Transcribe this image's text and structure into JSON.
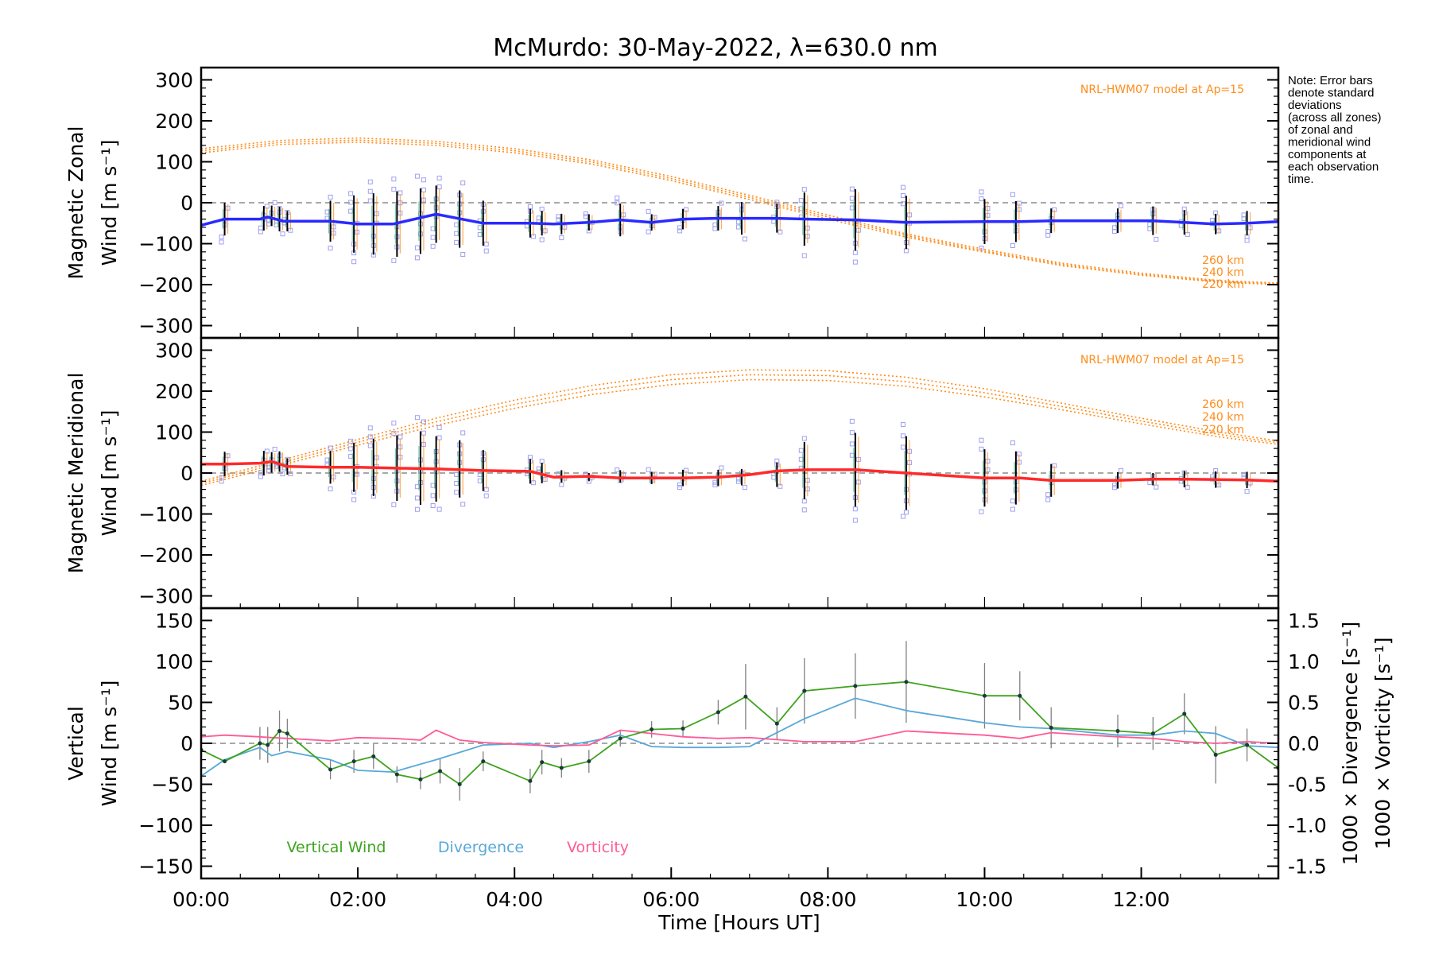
{
  "title": "McMurdo: 30-May-2022, λ=630.0 nm",
  "note_lines": [
    "Note: Error bars",
    "denote standard",
    "deviations",
    "(across all zones)",
    "of zonal and",
    "meridional wind",
    "components at",
    "each observation",
    "time."
  ],
  "colors": {
    "zonal": "#2a2aff",
    "meridional": "#ff2a2a",
    "vertical": "#3fa31f",
    "divergence": "#59a8d8",
    "vorticity": "#ff5a96",
    "model": "#ff8c1a",
    "scatter": "#a0a0f0",
    "zero": "#8c8c8c"
  },
  "chart_data": [
    {
      "type": "line",
      "panel": "zonal",
      "ylabel_line1": "Magnetic Zonal",
      "ylabel_line2": "Wind [m s⁻¹]",
      "ylim": [
        -330,
        330
      ],
      "yticks": [
        300,
        200,
        100,
        0,
        -100,
        -200,
        -300
      ],
      "xlim": [
        0,
        13.75
      ],
      "model_label": "NRL-HWM07 model at Ap=15",
      "model_heights": [
        "260 km",
        "240 km",
        "220 km"
      ],
      "series": [
        {
          "name": "Zonal wind",
          "x": [
            0,
            0.3,
            0.75,
            0.85,
            0.95,
            1.05,
            1.65,
            2.0,
            2.45,
            3.0,
            3.6,
            4.2,
            4.5,
            4.95,
            5.35,
            5.75,
            6.15,
            6.6,
            7.0,
            7.35,
            7.75,
            8.35,
            9.0,
            10.0,
            10.45,
            10.85,
            11.7,
            12.15,
            12.55,
            12.95,
            13.35,
            13.75
          ],
          "y": [
            -55,
            -40,
            -40,
            -35,
            -40,
            -45,
            -45,
            -52,
            -52,
            -28,
            -50,
            -50,
            -52,
            -48,
            -42,
            -48,
            -40,
            -38,
            -38,
            -38,
            -40,
            -42,
            -48,
            -46,
            -46,
            -44,
            -44,
            -44,
            -48,
            -52,
            -50,
            -46
          ]
        },
        {
          "name": "HWM 260 km",
          "x": [
            0,
            1,
            2,
            3,
            4,
            5,
            6,
            7,
            8,
            9,
            10,
            11,
            12,
            13,
            13.75
          ],
          "y": [
            132,
            152,
            158,
            150,
            132,
            104,
            64,
            18,
            -30,
            -76,
            -114,
            -148,
            -172,
            -190,
            -196
          ]
        },
        {
          "name": "HWM 240 km",
          "x": [
            0,
            1,
            2,
            3,
            4,
            5,
            6,
            7,
            8,
            9,
            10,
            11,
            12,
            13,
            13.75
          ],
          "y": [
            127,
            147,
            153,
            145,
            127,
            99,
            59,
            13,
            -35,
            -80,
            -118,
            -151,
            -175,
            -192,
            -198
          ]
        },
        {
          "name": "HWM 220 km",
          "x": [
            0,
            1,
            2,
            3,
            4,
            5,
            6,
            7,
            8,
            9,
            10,
            11,
            12,
            13,
            13.75
          ],
          "y": [
            122,
            142,
            148,
            140,
            122,
            94,
            54,
            8,
            -40,
            -84,
            -121,
            -154,
            -177,
            -194,
            -200
          ]
        }
      ],
      "error_bars": {
        "x": [
          0.3,
          0.8,
          0.9,
          1.0,
          1.1,
          1.65,
          1.95,
          2.2,
          2.5,
          2.8,
          3.0,
          3.3,
          3.6,
          4.2,
          4.35,
          4.6,
          4.95,
          5.35,
          5.75,
          6.15,
          6.6,
          6.9,
          7.35,
          7.7,
          8.35,
          9.0,
          10.0,
          10.4,
          10.85,
          11.7,
          12.15,
          12.55,
          12.95,
          13.35
        ],
        "y": [
          -40,
          -38,
          -32,
          -40,
          -45,
          -45,
          -52,
          -52,
          -52,
          -45,
          -28,
          -40,
          -50,
          -50,
          -50,
          -52,
          -48,
          -42,
          -48,
          -40,
          -38,
          -38,
          -38,
          -40,
          -42,
          -48,
          -46,
          -46,
          -44,
          -44,
          -44,
          -48,
          -52,
          -50
        ],
        "err": [
          40,
          30,
          25,
          30,
          25,
          50,
          70,
          75,
          80,
          80,
          70,
          70,
          55,
          35,
          30,
          25,
          20,
          40,
          20,
          25,
          30,
          40,
          35,
          65,
          75,
          65,
          55,
          50,
          30,
          30,
          35,
          30,
          25,
          30
        ]
      }
    },
    {
      "type": "line",
      "panel": "meridional",
      "ylabel_line1": "Magnetic Meridional",
      "ylabel_line2": "Wind [m s⁻¹]",
      "ylim": [
        -330,
        330
      ],
      "yticks": [
        300,
        200,
        100,
        0,
        -100,
        -200,
        -300
      ],
      "xlim": [
        0,
        13.75
      ],
      "model_label": "NRL-HWM07 model at Ap=15",
      "model_heights": [
        "260 km",
        "240 km",
        "220 km"
      ],
      "series": [
        {
          "name": "Meridional wind",
          "x": [
            0,
            0.3,
            0.75,
            0.9,
            1.1,
            1.65,
            2.0,
            2.45,
            3.0,
            3.6,
            4.2,
            4.5,
            4.95,
            5.35,
            5.75,
            6.15,
            6.6,
            7.0,
            7.35,
            7.75,
            8.35,
            9.0,
            10.0,
            10.45,
            10.85,
            11.7,
            12.15,
            12.55,
            12.95,
            13.35,
            13.75
          ],
          "y": [
            22,
            22,
            24,
            28,
            16,
            14,
            14,
            12,
            10,
            6,
            4,
            -10,
            -8,
            -12,
            -12,
            -12,
            -10,
            -4,
            5,
            8,
            8,
            0,
            -12,
            -12,
            -18,
            -18,
            -15,
            -15,
            -16,
            -17,
            -20
          ]
        },
        {
          "name": "HWM 260 km",
          "x": [
            0,
            1,
            2,
            3,
            4,
            5,
            6,
            7,
            8,
            9,
            10,
            11,
            12,
            13,
            13.75
          ],
          "y": [
            -20,
            30,
            82,
            134,
            178,
            214,
            240,
            252,
            250,
            234,
            206,
            170,
            134,
            100,
            78
          ]
        },
        {
          "name": "HWM 240 km",
          "x": [
            0,
            1,
            2,
            3,
            4,
            5,
            6,
            7,
            8,
            9,
            10,
            11,
            12,
            13,
            13.75
          ],
          "y": [
            -25,
            24,
            75,
            125,
            168,
            203,
            228,
            240,
            238,
            223,
            196,
            162,
            127,
            94,
            74
          ]
        },
        {
          "name": "HWM 220 km",
          "x": [
            0,
            1,
            2,
            3,
            4,
            5,
            6,
            7,
            8,
            9,
            10,
            11,
            12,
            13,
            13.75
          ],
          "y": [
            -30,
            18,
            68,
            116,
            158,
            192,
            216,
            228,
            226,
            212,
            186,
            154,
            120,
            88,
            70
          ]
        }
      ],
      "error_bars": {
        "x": [
          0.3,
          0.8,
          0.9,
          1.0,
          1.1,
          1.65,
          1.95,
          2.2,
          2.5,
          2.8,
          3.0,
          3.3,
          3.6,
          4.2,
          4.35,
          4.6,
          4.95,
          5.35,
          5.75,
          6.15,
          6.6,
          6.9,
          7.35,
          7.7,
          8.35,
          9.0,
          10.0,
          10.4,
          10.85,
          11.7,
          12.15,
          12.55,
          12.95,
          13.35
        ],
        "y": [
          22,
          24,
          26,
          28,
          16,
          14,
          14,
          14,
          12,
          12,
          10,
          10,
          6,
          4,
          0,
          -8,
          -10,
          -8,
          -12,
          -12,
          -12,
          -10,
          -4,
          6,
          8,
          0,
          -12,
          -12,
          -18,
          -18,
          -15,
          -15,
          -16,
          -17
        ],
        "err": [
          30,
          30,
          25,
          25,
          20,
          40,
          60,
          70,
          80,
          90,
          80,
          70,
          50,
          30,
          25,
          15,
          10,
          15,
          15,
          20,
          20,
          20,
          30,
          70,
          90,
          90,
          70,
          65,
          40,
          20,
          15,
          20,
          20,
          20
        ]
      }
    },
    {
      "type": "line",
      "panel": "vertical",
      "ylabel_line1": "Vertical",
      "ylabel_line2": "Wind [m s⁻¹]",
      "ylim": [
        -165,
        165
      ],
      "yticks": [
        150,
        100,
        50,
        0,
        -50,
        -100,
        -150
      ],
      "y2label_divergence": "1000 × Divergence [s⁻¹]",
      "y2label_vorticity": "1000 × Vorticity [s⁻¹]",
      "y2lim": [
        -1.65,
        1.65
      ],
      "y2ticks": [
        "1.5",
        "1.0",
        "0.5",
        "0.0",
        "-0.5",
        "-1.0",
        "-1.5"
      ],
      "y2tick_values": [
        1.5,
        1.0,
        0.5,
        0.0,
        -0.5,
        -1.0,
        -1.5
      ],
      "xlim": [
        0,
        13.75
      ],
      "xlabel": "Time [Hours UT]",
      "xticks": [
        "00:00",
        "02:00",
        "04:00",
        "06:00",
        "08:00",
        "10:00",
        "12:00"
      ],
      "xtick_values": [
        0,
        2,
        4,
        6,
        8,
        10,
        12
      ],
      "legend": [
        "Vertical Wind",
        "Divergence",
        "Vorticity"
      ],
      "series": [
        {
          "name": "Vertical Wind",
          "x": [
            0,
            0.3,
            0.75,
            0.85,
            1.0,
            1.1,
            1.65,
            1.95,
            2.2,
            2.5,
            2.8,
            3.05,
            3.3,
            3.6,
            4.2,
            4.35,
            4.6,
            4.95,
            5.35,
            5.75,
            6.15,
            6.6,
            6.95,
            7.35,
            7.7,
            8.35,
            9.0,
            10.0,
            10.45,
            10.85,
            11.7,
            12.15,
            12.55,
            12.95,
            13.35,
            13.75
          ],
          "y": [
            -8,
            -22,
            0,
            -2,
            15,
            12,
            -32,
            -22,
            -16,
            -38,
            -44,
            -34,
            -50,
            -22,
            -46,
            -23,
            -30,
            -22,
            6,
            17,
            18,
            38,
            57,
            24,
            64,
            70,
            75,
            58,
            58,
            19,
            15,
            12,
            36,
            -14,
            -2,
            -30
          ],
          "err": [
            0,
            0,
            20,
            22,
            25,
            18,
            12,
            14,
            15,
            10,
            12,
            15,
            20,
            12,
            15,
            15,
            12,
            14,
            10,
            10,
            10,
            15,
            40,
            20,
            40,
            40,
            50,
            40,
            30,
            25,
            20,
            20,
            25,
            35,
            20,
            0
          ]
        },
        {
          "name": "Divergence",
          "x": [
            0,
            0.3,
            0.75,
            0.9,
            1.1,
            1.65,
            2.0,
            2.45,
            3.0,
            3.6,
            4.2,
            4.5,
            4.95,
            5.35,
            5.75,
            6.15,
            6.6,
            7.0,
            7.7,
            8.35,
            9.0,
            10.0,
            10.45,
            10.85,
            11.7,
            12.15,
            12.55,
            12.95,
            13.35,
            13.75
          ],
          "y": [
            -0.4,
            -0.2,
            -0.05,
            -0.15,
            -0.1,
            -0.2,
            -0.33,
            -0.35,
            -0.2,
            -0.02,
            0.0,
            -0.05,
            0.02,
            0.1,
            -0.04,
            -0.05,
            -0.05,
            -0.04,
            0.3,
            0.55,
            0.4,
            0.25,
            0.2,
            0.18,
            0.1,
            0.1,
            0.15,
            0.12,
            -0.03,
            -0.05
          ]
        },
        {
          "name": "Vorticity",
          "x": [
            0,
            0.3,
            0.75,
            0.9,
            1.1,
            1.65,
            2.0,
            2.45,
            2.8,
            3.0,
            3.3,
            3.6,
            4.2,
            4.5,
            4.95,
            5.35,
            5.75,
            6.15,
            6.6,
            7.0,
            7.7,
            8.35,
            9.0,
            10.0,
            10.45,
            10.85,
            11.7,
            12.15,
            12.55,
            12.95,
            13.35,
            13.75
          ],
          "y": [
            0.08,
            0.1,
            0.08,
            0.07,
            0.06,
            0.03,
            0.07,
            0.06,
            0.04,
            0.16,
            0.04,
            0.01,
            -0.02,
            -0.03,
            -0.02,
            0.16,
            0.12,
            0.08,
            0.06,
            0.07,
            0.02,
            0.02,
            0.15,
            0.1,
            0.06,
            0.13,
            0.08,
            0.06,
            0.02,
            0.0,
            0.02,
            0.0
          ]
        }
      ]
    }
  ]
}
